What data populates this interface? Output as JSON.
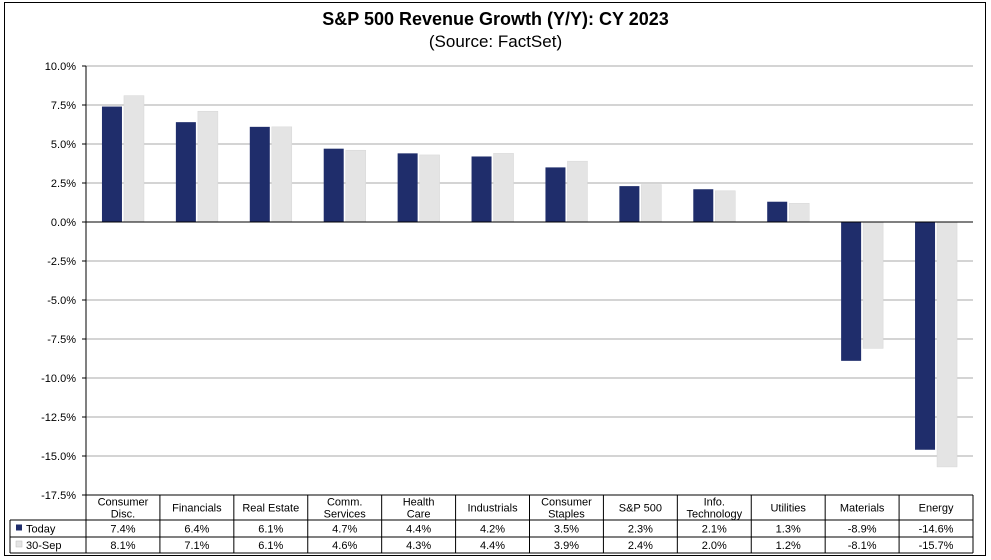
{
  "chart_data": {
    "type": "bar",
    "title": "S&P 500 Revenue Growth (Y/Y): CY 2023",
    "subtitle": "(Source: FactSet)",
    "categories": [
      [
        "Consumer",
        "Disc."
      ],
      [
        "Financials"
      ],
      [
        "Real Estate"
      ],
      [
        "Comm.",
        "Services"
      ],
      [
        "Health",
        "Care"
      ],
      [
        "Industrials"
      ],
      [
        "Consumer",
        "Staples"
      ],
      [
        "S&P 500"
      ],
      [
        "Info.",
        "Technology"
      ],
      [
        "Utilities"
      ],
      [
        "Materials"
      ],
      [
        "Energy"
      ]
    ],
    "series": [
      {
        "name": "Today",
        "color": "#1f2d6b",
        "values": [
          7.4,
          6.4,
          6.1,
          4.7,
          4.4,
          4.2,
          3.5,
          2.3,
          2.1,
          1.3,
          -8.9,
          -14.6
        ],
        "labels": [
          "7.4%",
          "6.4%",
          "6.1%",
          "4.7%",
          "4.4%",
          "4.2%",
          "3.5%",
          "2.3%",
          "2.1%",
          "1.3%",
          "-8.9%",
          "-14.6%"
        ]
      },
      {
        "name": "30-Sep",
        "color": "#e4e4e4",
        "values": [
          8.1,
          7.1,
          6.1,
          4.6,
          4.3,
          4.4,
          3.9,
          2.4,
          2.0,
          1.2,
          -8.1,
          -15.7
        ],
        "labels": [
          "8.1%",
          "7.1%",
          "6.1%",
          "4.6%",
          "4.3%",
          "4.4%",
          "3.9%",
          "2.4%",
          "2.0%",
          "1.2%",
          "-8.1%",
          "-15.7%"
        ]
      }
    ],
    "ylim": [
      -17.5,
      10.0
    ],
    "yticks": [
      "10.0%",
      "7.5%",
      "5.0%",
      "2.5%",
      "0.0%",
      "-2.5%",
      "-5.0%",
      "-7.5%",
      "-10.0%",
      "-12.5%",
      "-15.0%",
      "-17.5%"
    ],
    "ytick_values": [
      10,
      7.5,
      5,
      2.5,
      0,
      -2.5,
      -5,
      -7.5,
      -10,
      -12.5,
      -15,
      -17.5
    ],
    "grid": true,
    "legend": "data-table-bottom"
  }
}
